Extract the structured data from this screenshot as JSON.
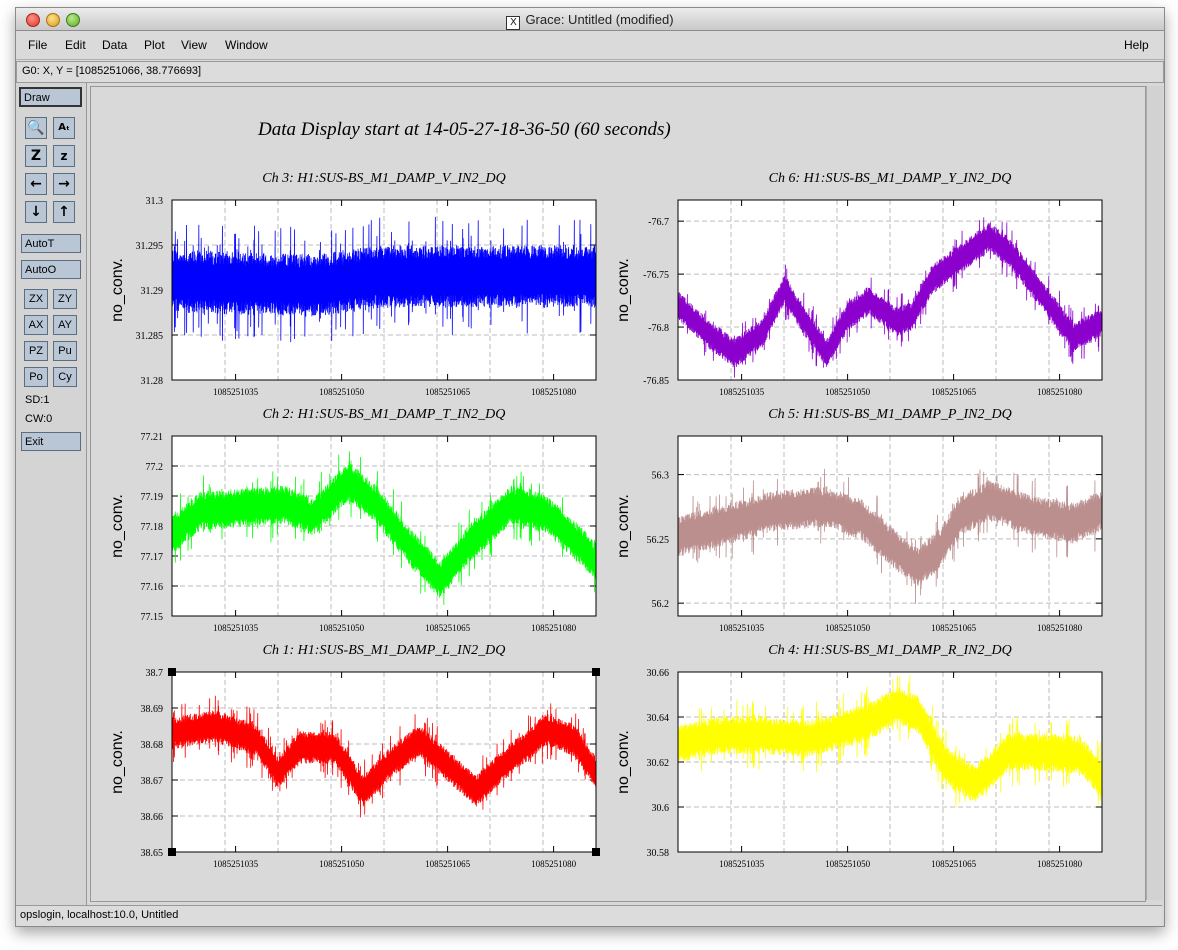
{
  "window": {
    "title": "Grace: Untitled (modified)",
    "x_icon": "X"
  },
  "menubar": {
    "items": [
      "File",
      "Edit",
      "Data",
      "Plot",
      "View",
      "Window"
    ],
    "help": "Help"
  },
  "coord": {
    "text": "G0: X, Y = [1085251066, 38.776693]"
  },
  "toolbar": {
    "draw": "Draw",
    "icons": [
      "zoom-icon",
      "text-icon",
      "zoom-x-icon",
      "zoom-y-icon",
      "arrow-left-icon",
      "arrow-right-icon",
      "arrow-down-icon",
      "arrow-up-icon"
    ],
    "autot": "AutoT",
    "autoo": "AutoO",
    "small": [
      "ZX",
      "ZY",
      "AX",
      "AY",
      "PZ",
      "Pu",
      "Po",
      "Cy"
    ],
    "sd": "SD:1",
    "cw": "CW:0",
    "exit": "Exit"
  },
  "main_title": "Data Display start at 14-05-27-18-36-50 (60 seconds)",
  "status": {
    "text": "opslogin, localhost:10.0, Untitled"
  },
  "chart_data": [
    {
      "type": "line",
      "title": "Ch 3: H1:SUS-BS_M1_DAMP_V_IN2_DQ",
      "ylabel": "no_conv.",
      "color": "#0000ff",
      "ylim": [
        31.28,
        31.3
      ],
      "yticks": [
        "31.28",
        "31.285",
        "31.29",
        "31.295",
        "31.3"
      ],
      "xlim": [
        1085251026,
        1085251086
      ],
      "xticks": [
        "1085251035",
        "1085251050",
        "1085251065",
        "1085251080"
      ],
      "band": {
        "center": [
          [
            1085251026,
            31.291
          ],
          [
            1085251046,
            31.2905
          ],
          [
            1085251056,
            31.2915
          ],
          [
            1085251086,
            31.2915
          ]
        ],
        "half_width": 0.0035
      }
    },
    {
      "type": "line",
      "title": "Ch 6: H1:SUS-BS_M1_DAMP_Y_IN2_DQ",
      "ylabel": "no_conv.",
      "color": "#8b00cc",
      "ylim": [
        -76.85,
        -76.68
      ],
      "yticks": [
        "-76.85",
        "-76.8",
        "-76.75",
        "-76.7"
      ],
      "xlim": [
        1085251026,
        1085251086
      ],
      "xticks": [
        "1085251035",
        "1085251050",
        "1085251065",
        "1085251080"
      ],
      "band": {
        "center": [
          [
            1085251026,
            -76.78
          ],
          [
            1085251030,
            -76.805
          ],
          [
            1085251034,
            -76.825
          ],
          [
            1085251038,
            -76.805
          ],
          [
            1085251041,
            -76.765
          ],
          [
            1085251044,
            -76.795
          ],
          [
            1085251047,
            -76.825
          ],
          [
            1085251050,
            -76.79
          ],
          [
            1085251053,
            -76.775
          ],
          [
            1085251057,
            -76.795
          ],
          [
            1085251059,
            -76.79
          ],
          [
            1085251062,
            -76.755
          ],
          [
            1085251066,
            -76.735
          ],
          [
            1085251070,
            -76.715
          ],
          [
            1085251073,
            -76.73
          ],
          [
            1085251077,
            -76.765
          ],
          [
            1085251082,
            -76.81
          ],
          [
            1085251086,
            -76.795
          ]
        ],
        "half_width": 0.014
      }
    },
    {
      "type": "line",
      "title": "Ch 2: H1:SUS-BS_M1_DAMP_T_IN2_DQ",
      "ylabel": "no_conv.",
      "color": "#00ff00",
      "ylim": [
        77.15,
        77.21
      ],
      "yticks": [
        "77.15",
        "77.16",
        "77.17",
        "77.18",
        "77.19",
        "77.2",
        "77.21"
      ],
      "xlim": [
        1085251026,
        1085251086
      ],
      "xticks": [
        "1085251035",
        "1085251050",
        "1085251065",
        "1085251080"
      ],
      "band": {
        "center": [
          [
            1085251026,
            77.177
          ],
          [
            1085251030,
            77.185
          ],
          [
            1085251036,
            77.186
          ],
          [
            1085251042,
            77.187
          ],
          [
            1085251046,
            77.183
          ],
          [
            1085251051,
            77.195
          ],
          [
            1085251055,
            77.187
          ],
          [
            1085251060,
            77.172
          ],
          [
            1085251064,
            77.162
          ],
          [
            1085251068,
            77.174
          ],
          [
            1085251074,
            77.187
          ],
          [
            1085251079,
            77.184
          ],
          [
            1085251084,
            77.173
          ],
          [
            1085251086,
            77.168
          ]
        ],
        "half_width": 0.0065
      }
    },
    {
      "type": "line",
      "title": "Ch 5: H1:SUS-BS_M1_DAMP_P_IN2_DQ",
      "ylabel": "no_conv.",
      "color": "#bc8f8f",
      "ylim": [
        56.19,
        56.33
      ],
      "yticks": [
        "56.2",
        "56.25",
        "56.3"
      ],
      "xlim": [
        1085251026,
        1085251086
      ],
      "xticks": [
        "1085251035",
        "1085251050",
        "1085251065",
        "1085251080"
      ],
      "band": {
        "center": [
          [
            1085251026,
            56.252
          ],
          [
            1085251032,
            56.26
          ],
          [
            1085251040,
            56.272
          ],
          [
            1085251047,
            56.275
          ],
          [
            1085251052,
            56.265
          ],
          [
            1085251056,
            56.245
          ],
          [
            1085251060,
            56.228
          ],
          [
            1085251063,
            56.242
          ],
          [
            1085251066,
            56.268
          ],
          [
            1085251070,
            56.28
          ],
          [
            1085251076,
            56.268
          ],
          [
            1085251082,
            56.262
          ],
          [
            1085251086,
            56.272
          ]
        ],
        "half_width": 0.016
      }
    },
    {
      "type": "line",
      "title": "Ch 1: H1:SUS-BS_M1_DAMP_L_IN2_DQ",
      "ylabel": "no_conv.",
      "color": "#ff0000",
      "ylim": [
        38.65,
        38.7
      ],
      "yticks": [
        "38.65",
        "38.66",
        "38.67",
        "38.68",
        "38.69",
        "38.7"
      ],
      "xlim": [
        1085251026,
        1085251086
      ],
      "xticks": [
        "1085251035",
        "1085251050",
        "1085251065",
        "1085251080"
      ],
      "band": {
        "center": [
          [
            1085251026,
            38.683
          ],
          [
            1085251032,
            38.685
          ],
          [
            1085251038,
            38.681
          ],
          [
            1085251041,
            38.672
          ],
          [
            1085251044,
            38.679
          ],
          [
            1085251049,
            38.679
          ],
          [
            1085251053,
            38.667
          ],
          [
            1085251057,
            38.675
          ],
          [
            1085251061,
            38.681
          ],
          [
            1085251065,
            38.674
          ],
          [
            1085251069,
            38.667
          ],
          [
            1085251074,
            38.676
          ],
          [
            1085251079,
            38.684
          ],
          [
            1085251083,
            38.681
          ],
          [
            1085251086,
            38.672
          ]
        ],
        "half_width": 0.0045
      }
    },
    {
      "type": "line",
      "title": "Ch 4: H1:SUS-BS_M1_DAMP_R_IN2_DQ",
      "ylabel": "no_conv.",
      "color": "#ffff00",
      "ylim": [
        30.58,
        30.66
      ],
      "yticks": [
        "30.58",
        "30.6",
        "30.62",
        "30.64",
        "30.66"
      ],
      "xlim": [
        1085251026,
        1085251086
      ],
      "xticks": [
        "1085251035",
        "1085251050",
        "1085251065",
        "1085251080"
      ],
      "band": {
        "center": [
          [
            1085251026,
            30.628
          ],
          [
            1085251032,
            30.632
          ],
          [
            1085251038,
            30.632
          ],
          [
            1085251044,
            30.63
          ],
          [
            1085251049,
            30.634
          ],
          [
            1085251053,
            30.638
          ],
          [
            1085251057,
            30.645
          ],
          [
            1085251060,
            30.641
          ],
          [
            1085251064,
            30.618
          ],
          [
            1085251068,
            30.61
          ],
          [
            1085251073,
            30.625
          ],
          [
            1085251079,
            30.624
          ],
          [
            1085251083,
            30.623
          ],
          [
            1085251086,
            30.612
          ]
        ],
        "half_width": 0.0085
      }
    }
  ]
}
